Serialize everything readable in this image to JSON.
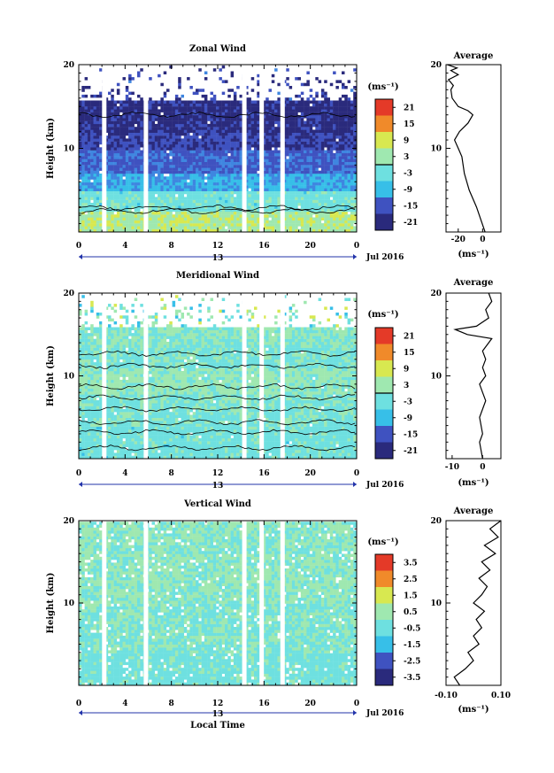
{
  "units_label": "(ms⁻¹)",
  "average_title": "Average",
  "date_label": "Jul 2016",
  "xaxis_label": "Local Time",
  "chart_data": [
    {
      "type": "heatmap",
      "title": "Zonal Wind",
      "ylabel": "Height (km)",
      "xlabel": "",
      "xlim": [
        0,
        24
      ],
      "ylim": [
        0,
        20
      ],
      "x_ticks": [
        "0",
        "4",
        "8",
        "12",
        "16",
        "20",
        "0"
      ],
      "y_ticks": [
        "10",
        "20"
      ],
      "day_label": "13",
      "colorbar": {
        "ticks": [
          "21",
          "15",
          "9",
          "3",
          "-3",
          "-9",
          "-15",
          "-21"
        ],
        "range": [
          -24,
          24
        ],
        "zero_line": true
      },
      "data_gaps_hours": [
        2.2,
        5.8,
        14.3,
        15.8,
        17.6
      ],
      "layers": [
        {
          "from_km": 0,
          "to_km": 2.5,
          "value": 4
        },
        {
          "from_km": 2.5,
          "to_km": 5,
          "value": -2
        },
        {
          "from_km": 5,
          "to_km": 7,
          "value": -9
        },
        {
          "from_km": 7,
          "to_km": 10,
          "value": -15
        },
        {
          "from_km": 10,
          "to_km": 12,
          "value": -19
        },
        {
          "from_km": 12,
          "to_km": 16,
          "value": -21
        }
      ],
      "contour_heights_km": [
        2.5,
        2.9,
        14.0
      ],
      "average_profile": {
        "x_ticks": [
          "-20",
          "0"
        ],
        "xlim": [
          -30,
          15
        ],
        "points": [
          [
            2,
            0
          ],
          [
            -5,
            3
          ],
          [
            -11,
            5
          ],
          [
            -15,
            7
          ],
          [
            -17,
            9
          ],
          [
            -20,
            10
          ],
          [
            -23,
            11
          ],
          [
            -19,
            12
          ],
          [
            -12,
            13
          ],
          [
            -8,
            14
          ],
          [
            -12,
            14.5
          ],
          [
            -20,
            15
          ],
          [
            -25,
            16
          ],
          [
            -26,
            17
          ],
          [
            -24,
            17.5
          ],
          [
            -28,
            18.2
          ],
          [
            -20,
            18.8
          ],
          [
            -26,
            19.3
          ],
          [
            -21,
            19.6
          ],
          [
            -29,
            20
          ]
        ]
      }
    },
    {
      "type": "heatmap",
      "title": "Meridional Wind",
      "ylabel": "Height (km)",
      "xlabel": "",
      "xlim": [
        0,
        24
      ],
      "ylim": [
        0,
        20
      ],
      "x_ticks": [
        "0",
        "4",
        "8",
        "12",
        "16",
        "20",
        "0"
      ],
      "y_ticks": [
        "10",
        "20"
      ],
      "day_label": "13",
      "colorbar": {
        "ticks": [
          "21",
          "15",
          "9",
          "3",
          "-3",
          "-9",
          "-15",
          "-21"
        ],
        "range": [
          -24,
          24
        ],
        "zero_line": true
      },
      "data_gaps_hours": [
        2.2,
        5.8,
        14.3,
        15.8,
        17.6
      ],
      "layers": [
        {
          "from_km": 0,
          "to_km": 4,
          "value": -2
        },
        {
          "from_km": 4,
          "to_km": 8,
          "value": -1
        },
        {
          "from_km": 8,
          "to_km": 11,
          "value": 1
        },
        {
          "from_km": 11,
          "to_km": 14,
          "value": -1
        },
        {
          "from_km": 14,
          "to_km": 16,
          "value": 0
        }
      ],
      "contour_heights_km": [
        1.3,
        3.2,
        4.4,
        6.0,
        7.4,
        8.7,
        11.2,
        12.7
      ],
      "average_profile": {
        "x_ticks": [
          "-10",
          "0"
        ],
        "xlim": [
          -12,
          6
        ],
        "points": [
          [
            0,
            0
          ],
          [
            -1,
            2
          ],
          [
            0,
            3
          ],
          [
            -1,
            5
          ],
          [
            1,
            7
          ],
          [
            0,
            8
          ],
          [
            -1,
            9
          ],
          [
            1,
            10
          ],
          [
            0,
            11
          ],
          [
            1,
            12
          ],
          [
            0,
            13
          ],
          [
            2,
            14
          ],
          [
            3,
            14.5
          ],
          [
            -5,
            15
          ],
          [
            -9,
            15.6
          ],
          [
            -2,
            16
          ],
          [
            2,
            17
          ],
          [
            1,
            18
          ],
          [
            3,
            19
          ],
          [
            2,
            20
          ]
        ]
      }
    },
    {
      "type": "heatmap",
      "title": "Vertical Wind",
      "ylabel": "Height (km)",
      "xlabel": "Local Time",
      "xlim": [
        0,
        24
      ],
      "ylim": [
        0,
        20
      ],
      "x_ticks": [
        "0",
        "4",
        "8",
        "12",
        "16",
        "20",
        "0"
      ],
      "y_ticks": [
        "10",
        "20"
      ],
      "day_label": "13",
      "colorbar": {
        "ticks": [
          "3.5",
          "2.5",
          "1.5",
          "0.5",
          "-0.5",
          "-1.5",
          "-2.5",
          "-3.5"
        ],
        "range": [
          -4,
          4
        ],
        "zero_line": false
      },
      "data_gaps_hours": [
        2.2,
        5.8,
        14.3,
        15.8,
        17.6
      ],
      "layers": [
        {
          "from_km": 0,
          "to_km": 4,
          "value": -0.3
        },
        {
          "from_km": 4,
          "to_km": 10,
          "value": -0.1
        },
        {
          "from_km": 10,
          "to_km": 20,
          "value": 0.1
        }
      ],
      "contour_heights_km": [],
      "average_profile": {
        "x_ticks": [
          "-0.10",
          "0.10"
        ],
        "xlim": [
          -0.1,
          0.1
        ],
        "points": [
          [
            -0.05,
            0
          ],
          [
            -0.07,
            1
          ],
          [
            -0.03,
            2
          ],
          [
            0.0,
            3
          ],
          [
            -0.02,
            4
          ],
          [
            0.02,
            5
          ],
          [
            0.0,
            6
          ],
          [
            0.03,
            7
          ],
          [
            0.01,
            8
          ],
          [
            0.04,
            9
          ],
          [
            0.0,
            10
          ],
          [
            0.03,
            11
          ],
          [
            0.05,
            12
          ],
          [
            0.02,
            13
          ],
          [
            0.06,
            14
          ],
          [
            0.03,
            15
          ],
          [
            0.08,
            16
          ],
          [
            0.04,
            17
          ],
          [
            0.09,
            18
          ],
          [
            0.06,
            19
          ],
          [
            0.1,
            20
          ]
        ]
      }
    }
  ]
}
